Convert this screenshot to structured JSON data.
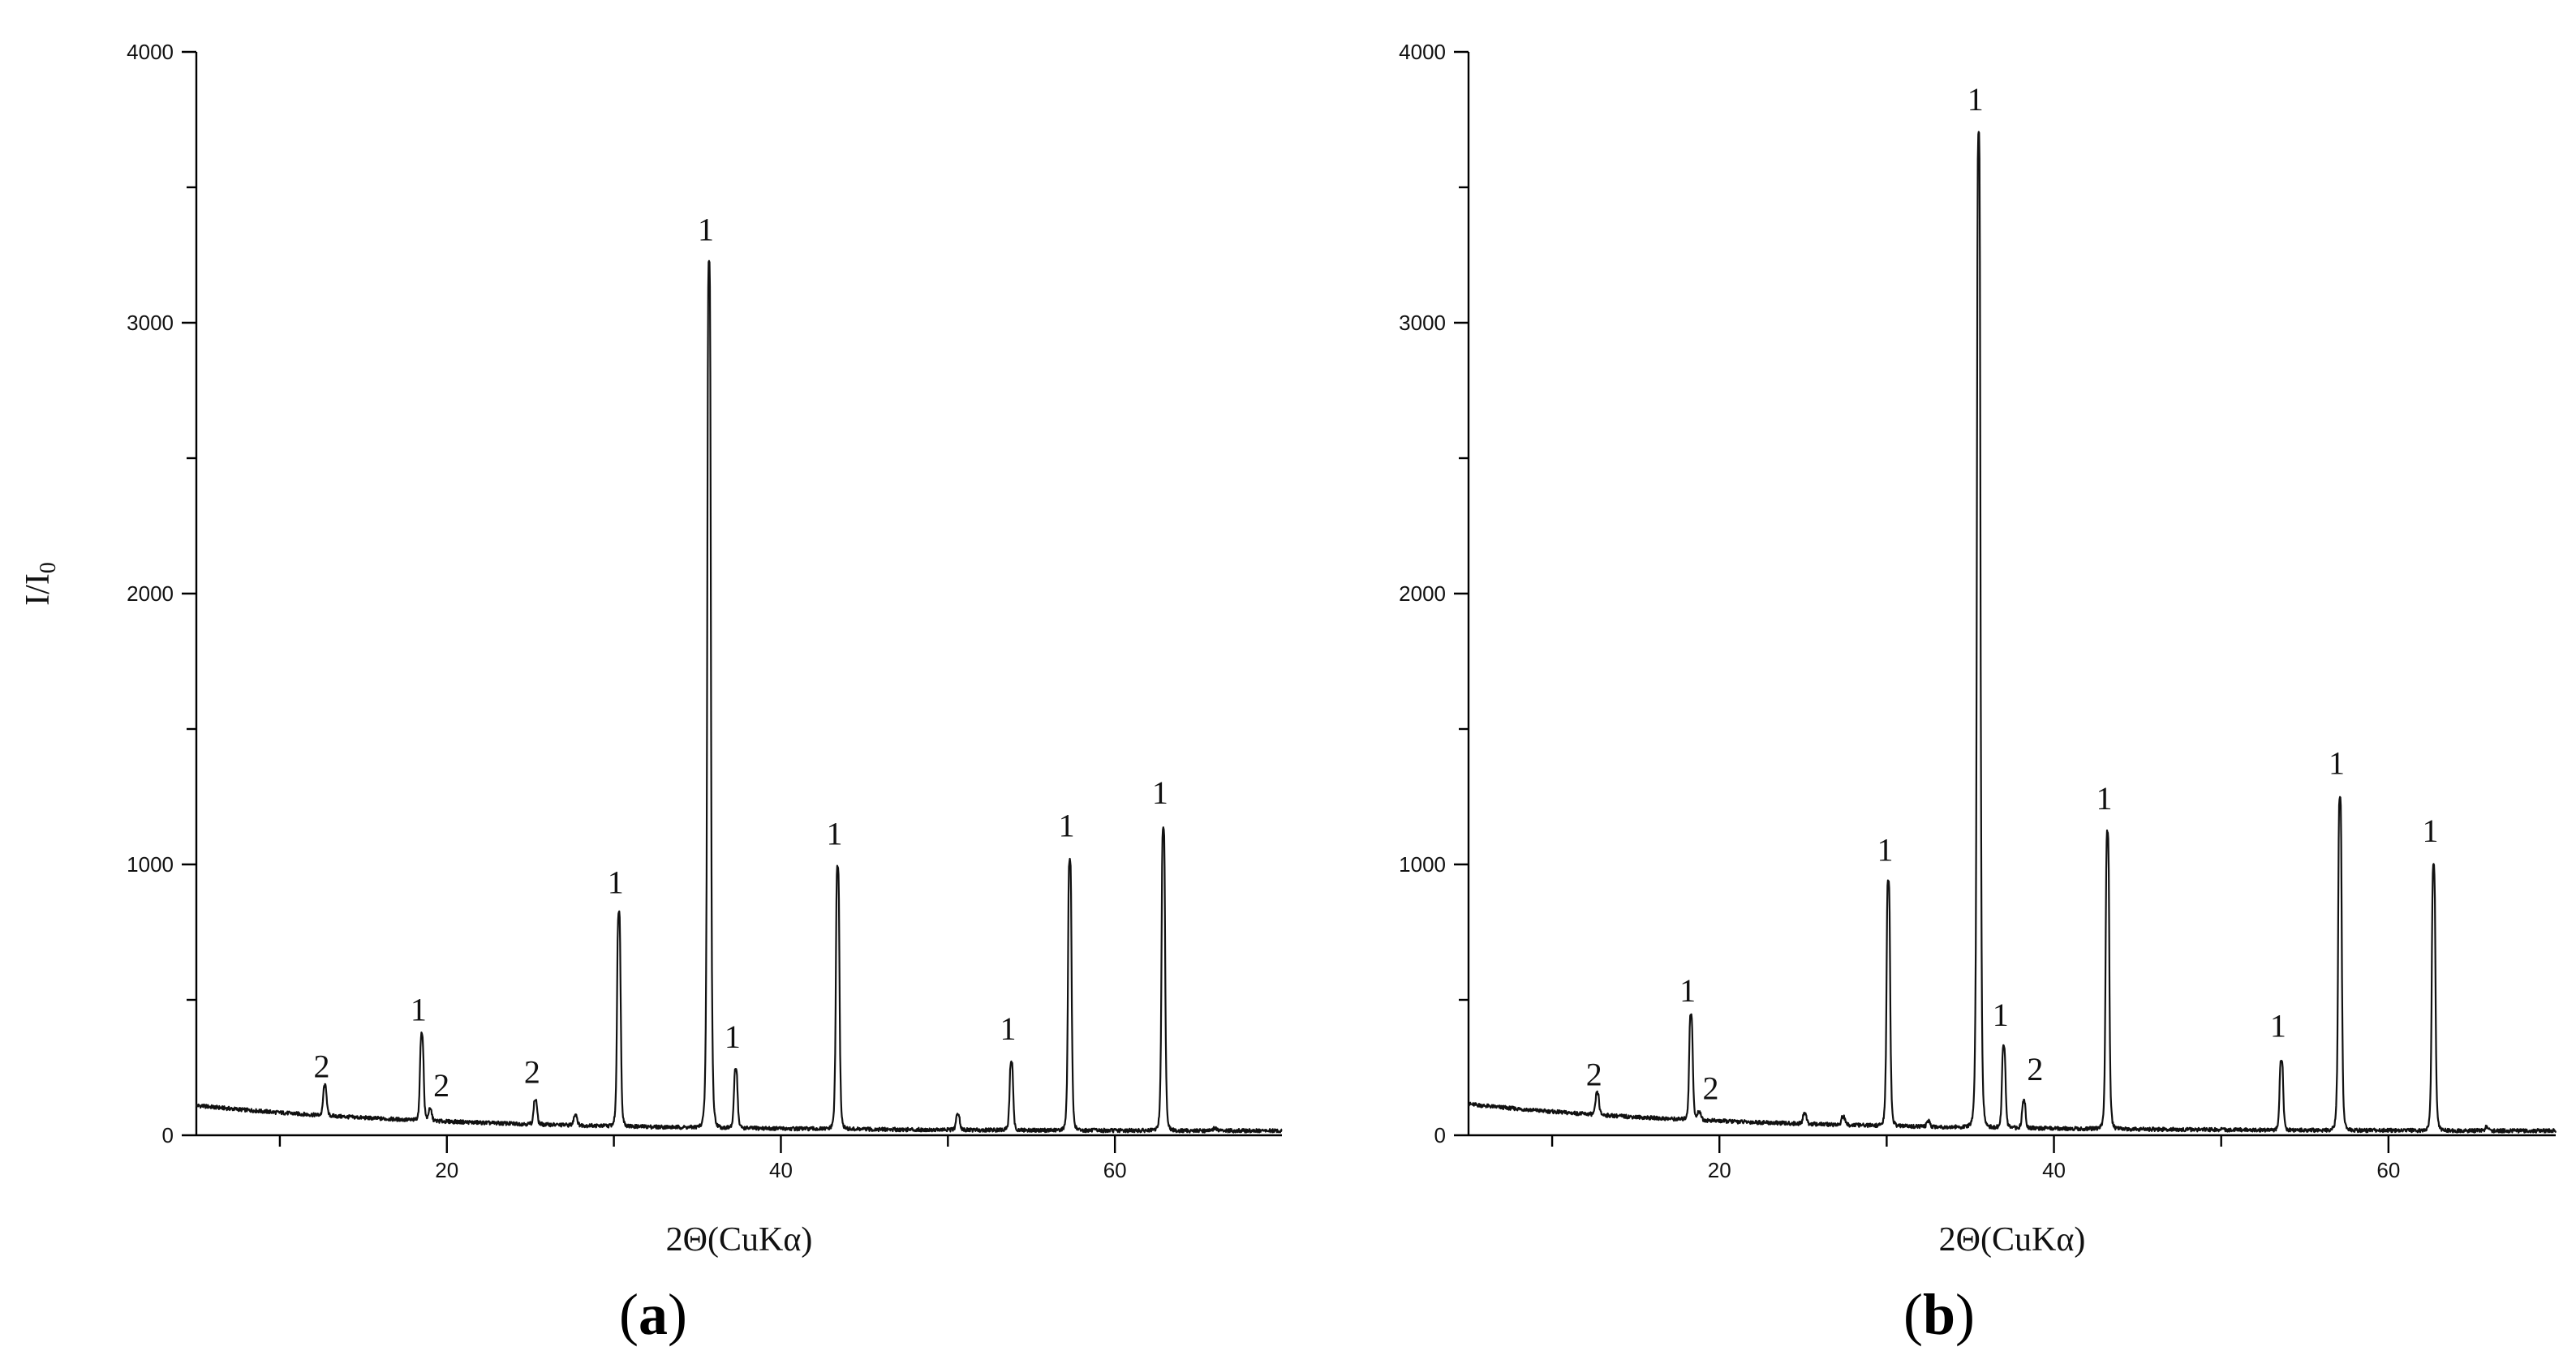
{
  "chart_data": [
    {
      "type": "line",
      "panel_label": "a",
      "xlabel": "2Θ(CuKα)",
      "ylabel": "I/I",
      "ylabel_sub": "0",
      "xlim": [
        5,
        70
      ],
      "ylim": [
        0,
        4000
      ],
      "x_ticks": [
        20,
        40,
        60
      ],
      "x_minor_ticks": [
        10,
        30,
        50
      ],
      "y_ticks": [
        0,
        1000,
        2000,
        3000,
        4000
      ],
      "y_minor_ticks": [
        500,
        1500,
        2500,
        3500
      ],
      "background": {
        "start": 110,
        "end": 15
      },
      "peaks": [
        {
          "x": 12.7,
          "y": 130,
          "label": "2"
        },
        {
          "x": 18.5,
          "y": 340,
          "label": "1"
        },
        {
          "x": 19.0,
          "y": 60,
          "label": "2"
        },
        {
          "x": 25.3,
          "y": 110,
          "label": "2"
        },
        {
          "x": 27.7,
          "y": 60,
          "label": ""
        },
        {
          "x": 30.3,
          "y": 810,
          "label": "1"
        },
        {
          "x": 35.7,
          "y": 3220,
          "label": "1"
        },
        {
          "x": 37.3,
          "y": 240,
          "label": "1"
        },
        {
          "x": 43.4,
          "y": 990,
          "label": "1"
        },
        {
          "x": 50.6,
          "y": 80,
          "label": ""
        },
        {
          "x": 53.8,
          "y": 270,
          "label": "1"
        },
        {
          "x": 57.3,
          "y": 1020,
          "label": "1"
        },
        {
          "x": 62.9,
          "y": 1140,
          "label": "1"
        },
        {
          "x": 66.0,
          "y": 30,
          "label": ""
        }
      ]
    },
    {
      "type": "line",
      "panel_label": "b",
      "xlabel": "2Θ(CuKα)",
      "ylabel": "",
      "ylabel_sub": "",
      "xlim": [
        5,
        70
      ],
      "ylim": [
        0,
        4000
      ],
      "x_ticks": [
        20,
        40,
        60
      ],
      "x_minor_ticks": [
        10,
        30,
        50
      ],
      "y_ticks": [
        0,
        1000,
        2000,
        3000,
        4000
      ],
      "y_minor_ticks": [
        500,
        1500,
        2500,
        3500
      ],
      "background": {
        "start": 115,
        "end": 15
      },
      "peaks": [
        {
          "x": 12.7,
          "y": 100,
          "label": "2"
        },
        {
          "x": 18.3,
          "y": 410,
          "label": "1"
        },
        {
          "x": 18.8,
          "y": 50,
          "label": "2"
        },
        {
          "x": 25.1,
          "y": 60,
          "label": ""
        },
        {
          "x": 27.4,
          "y": 50,
          "label": ""
        },
        {
          "x": 30.1,
          "y": 930,
          "label": "1"
        },
        {
          "x": 32.5,
          "y": 40,
          "label": ""
        },
        {
          "x": 35.5,
          "y": 3700,
          "label": "1"
        },
        {
          "x": 37.0,
          "y": 320,
          "label": "1"
        },
        {
          "x": 38.2,
          "y": 120,
          "label": "2"
        },
        {
          "x": 43.2,
          "y": 1120,
          "label": "1"
        },
        {
          "x": 53.6,
          "y": 280,
          "label": "1"
        },
        {
          "x": 57.1,
          "y": 1250,
          "label": "1"
        },
        {
          "x": 62.7,
          "y": 1000,
          "label": "1"
        },
        {
          "x": 65.9,
          "y": 35,
          "label": ""
        }
      ]
    }
  ]
}
